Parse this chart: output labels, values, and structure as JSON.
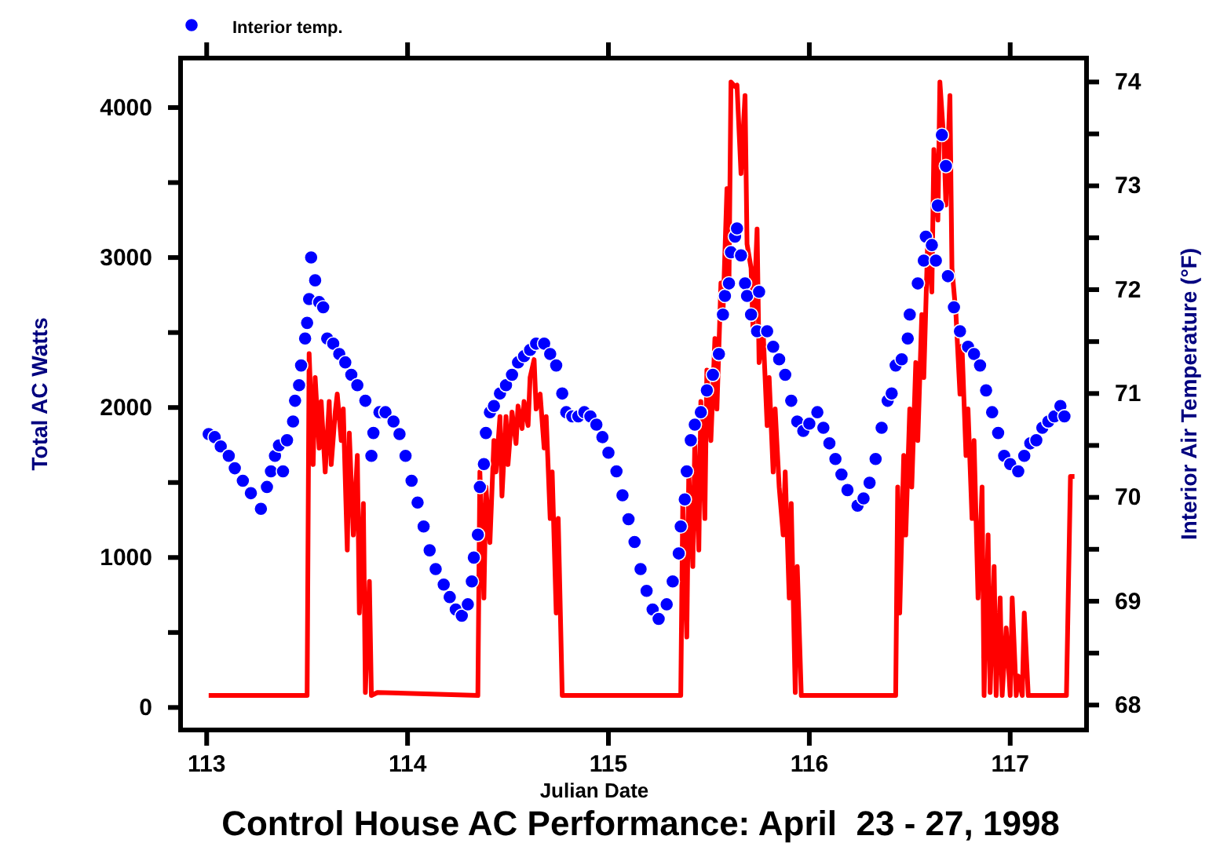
{
  "chart_data": {
    "type": "line",
    "title": "Control House AC Performance: April  23 - 27, 1998",
    "xlabel": "Julian Date",
    "ylabel": "Total AC Watts",
    "y2label": "Interior Air Temperature (°F)",
    "xlim": [
      112.87,
      117.38
    ],
    "xticks": [
      113,
      114,
      115,
      116,
      117
    ],
    "ylim": [
      -150,
      4330
    ],
    "yticks": [
      0,
      {
        "value": 500,
        "label": null
      },
      1000,
      {
        "value": 1500,
        "label": null
      },
      2000,
      {
        "value": 2500,
        "label": null
      },
      3000,
      {
        "value": 3500,
        "label": null
      },
      4000
    ],
    "y2lim": [
      67.76,
      74.23
    ],
    "y2ticks": [
      68,
      {
        "value": 68.5,
        "label": null
      },
      69,
      {
        "value": 69.5,
        "label": null
      },
      70,
      {
        "value": 70.5,
        "label": null
      },
      71,
      {
        "value": 71.5,
        "label": null
      },
      72,
      {
        "value": 72.5,
        "label": null
      },
      73,
      {
        "value": 73.5,
        "label": null
      },
      74
    ],
    "legend": "top left",
    "grid": false,
    "series": [
      {
        "color": "#ff0000",
        "x": [
          113.01,
          113.5,
          113.51,
          113.53,
          113.54,
          113.56,
          113.57,
          113.59,
          113.61,
          113.62,
          113.64,
          113.65,
          113.67,
          113.68,
          113.7,
          113.71,
          113.73,
          113.75,
          113.76,
          113.78,
          113.79,
          113.81,
          113.82,
          113.85,
          114.35,
          114.36,
          114.38,
          114.39,
          114.41,
          114.43,
          114.44,
          114.46,
          114.47,
          114.49,
          114.5,
          114.52,
          114.54,
          114.55,
          114.57,
          114.58,
          114.6,
          114.61,
          114.63,
          114.64,
          114.66,
          114.68,
          114.69,
          114.71,
          114.72,
          114.74,
          114.75,
          114.77,
          115.36,
          115.37,
          115.39,
          115.4,
          115.42,
          115.43,
          115.45,
          115.46,
          115.48,
          115.49,
          115.51,
          115.53,
          115.54,
          115.56,
          115.57,
          115.59,
          115.6,
          115.61,
          115.63,
          115.64,
          115.66,
          115.68,
          115.69,
          115.71,
          115.72,
          115.74,
          115.75,
          115.77,
          115.79,
          115.8,
          115.82,
          115.83,
          115.85,
          115.87,
          115.88,
          115.9,
          115.91,
          115.93,
          115.94,
          115.96,
          116.43,
          116.44,
          116.45,
          116.47,
          116.48,
          116.5,
          116.51,
          116.53,
          116.54,
          116.56,
          116.57,
          116.59,
          116.61,
          116.62,
          116.64,
          116.65,
          116.67,
          116.68,
          116.7,
          116.71,
          116.73,
          116.75,
          116.76,
          116.78,
          116.79,
          116.81,
          116.82,
          116.84,
          116.86,
          116.87,
          116.89,
          116.9,
          116.92,
          116.93,
          116.95,
          116.96,
          116.98,
          117.0,
          117.01,
          117.03,
          117.04,
          117.06,
          117.07,
          117.09,
          117.28,
          117.3,
          117.32
        ],
        "values": [
          80,
          80,
          2360,
          1620,
          2200,
          1730,
          2040,
          1570,
          2040,
          1620,
          1970,
          2090,
          1780,
          1990,
          1050,
          1830,
          1150,
          1680,
          630,
          1360,
          100,
          840,
          80,
          100,
          80,
          1570,
          730,
          1470,
          1100,
          1780,
          1570,
          1940,
          1410,
          1940,
          1620,
          1970,
          1760,
          2010,
          1860,
          2040,
          1880,
          2200,
          2320,
          1990,
          2090,
          1730,
          1940,
          1260,
          1570,
          630,
          1260,
          80,
          80,
          1360,
          470,
          1570,
          940,
          1780,
          1050,
          2040,
          1260,
          2250,
          1780,
          2460,
          1990,
          2830,
          2620,
          3460,
          2830,
          4170,
          4140,
          4150,
          3560,
          4080,
          3090,
          2930,
          2510,
          3190,
          2300,
          2510,
          1880,
          2200,
          1570,
          1990,
          1470,
          1150,
          1570,
          730,
          1360,
          100,
          940,
          80,
          80,
          1470,
          630,
          1680,
          1150,
          1990,
          1470,
          2300,
          1780,
          2620,
          2200,
          3140,
          2770,
          3720,
          3250,
          4170,
          3770,
          3350,
          4080,
          2930,
          2620,
          2090,
          2410,
          1680,
          1990,
          1260,
          1780,
          730,
          1470,
          80,
          1150,
          100,
          940,
          80,
          730,
          80,
          530,
          80,
          730,
          80,
          210,
          80,
          630,
          80,
          80,
          1540,
          1540
        ]
      },
      {
        "type": "scatter",
        "axis": "y2",
        "name": "Interior temp.",
        "color": "#0000ff",
        "marker": "circle",
        "x": [
          113.01,
          113.04,
          113.07,
          113.11,
          113.14,
          113.18,
          113.22,
          113.27,
          113.3,
          113.32,
          113.34,
          113.36,
          113.38,
          113.4,
          113.43,
          113.44,
          113.46,
          113.47,
          113.49,
          113.5,
          113.51,
          113.52,
          113.54,
          113.56,
          113.58,
          113.6,
          113.63,
          113.66,
          113.69,
          113.72,
          113.75,
          113.79,
          113.82,
          113.83,
          113.86,
          113.89,
          113.93,
          113.96,
          113.99,
          114.02,
          114.05,
          114.08,
          114.11,
          114.14,
          114.18,
          114.21,
          114.24,
          114.27,
          114.3,
          114.32,
          114.33,
          114.35,
          114.36,
          114.38,
          114.39,
          114.41,
          114.43,
          114.46,
          114.49,
          114.52,
          114.55,
          114.58,
          114.61,
          114.64,
          114.68,
          114.71,
          114.74,
          114.77,
          114.79,
          114.82,
          114.85,
          114.88,
          114.91,
          114.94,
          114.97,
          115.0,
          115.04,
          115.07,
          115.1,
          115.13,
          115.16,
          115.19,
          115.22,
          115.25,
          115.29,
          115.32,
          115.35,
          115.36,
          115.38,
          115.39,
          115.41,
          115.43,
          115.46,
          115.49,
          115.52,
          115.55,
          115.57,
          115.58,
          115.6,
          115.61,
          115.63,
          115.64,
          115.66,
          115.68,
          115.69,
          115.71,
          115.74,
          115.75,
          115.79,
          115.82,
          115.85,
          115.88,
          115.91,
          115.94,
          115.97,
          116.0,
          116.04,
          116.07,
          116.1,
          116.13,
          116.16,
          116.19,
          116.24,
          116.27,
          116.3,
          116.33,
          116.36,
          116.39,
          116.41,
          116.43,
          116.46,
          116.49,
          116.5,
          116.54,
          116.57,
          116.58,
          116.61,
          116.63,
          116.64,
          116.66,
          116.68,
          116.69,
          116.72,
          116.75,
          116.79,
          116.82,
          116.85,
          116.88,
          116.91,
          116.94,
          116.97,
          117.0,
          117.04,
          117.07,
          117.1,
          117.13,
          117.16,
          117.19,
          117.22,
          117.25,
          117.27
        ],
        "values": [
          70.61,
          70.58,
          70.49,
          70.4,
          70.28,
          70.16,
          70.04,
          69.89,
          70.1,
          70.25,
          70.4,
          70.5,
          70.25,
          70.55,
          70.73,
          70.93,
          71.08,
          71.27,
          71.53,
          71.68,
          71.91,
          72.31,
          72.09,
          71.88,
          71.83,
          71.53,
          71.48,
          71.38,
          71.3,
          71.18,
          71.08,
          70.93,
          70.4,
          70.62,
          70.82,
          70.82,
          70.73,
          70.61,
          70.4,
          70.16,
          69.95,
          69.72,
          69.49,
          69.31,
          69.16,
          69.04,
          68.92,
          68.86,
          68.97,
          69.19,
          69.42,
          69.64,
          70.1,
          70.32,
          70.62,
          70.82,
          70.88,
          71.0,
          71.08,
          71.18,
          71.3,
          71.36,
          71.42,
          71.48,
          71.48,
          71.38,
          71.27,
          71.0,
          70.82,
          70.78,
          70.78,
          70.82,
          70.78,
          70.7,
          70.58,
          70.43,
          70.25,
          70.02,
          69.79,
          69.57,
          69.31,
          69.1,
          68.92,
          68.83,
          68.97,
          69.19,
          69.46,
          69.72,
          69.98,
          70.25,
          70.55,
          70.7,
          70.82,
          71.03,
          71.18,
          71.38,
          71.76,
          71.94,
          72.06,
          72.36,
          72.51,
          72.59,
          72.33,
          72.06,
          71.94,
          71.76,
          71.6,
          71.98,
          71.6,
          71.45,
          71.33,
          71.18,
          70.93,
          70.73,
          70.64,
          70.71,
          70.82,
          70.67,
          70.52,
          70.37,
          70.22,
          70.07,
          69.92,
          69.99,
          70.14,
          70.37,
          70.67,
          70.93,
          71.0,
          71.27,
          71.33,
          71.53,
          71.76,
          72.06,
          72.28,
          72.51,
          72.43,
          72.28,
          72.81,
          73.49,
          73.19,
          72.13,
          71.83,
          71.6,
          71.45,
          71.38,
          71.27,
          71.03,
          70.82,
          70.62,
          70.4,
          70.32,
          70.25,
          70.4,
          70.52,
          70.55,
          70.67,
          70.73,
          70.78,
          70.88,
          70.78
        ]
      }
    ]
  }
}
